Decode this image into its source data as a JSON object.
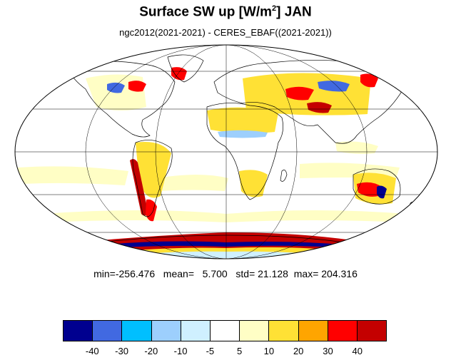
{
  "title": {
    "main": "Surface SW up [W/m",
    "sup": "2",
    "tail": "]  JAN"
  },
  "subtitle": "ngc2012(2021-2021) - CERES_EBAF((2021-2021))",
  "stats": {
    "min_label": "min=",
    "min": "-256.476",
    "mean_label": "mean=",
    "mean": "5.700",
    "std_label": "std=",
    "std": "21.128",
    "max_label": "max=",
    "max": "204.316"
  },
  "colorbar": {
    "colors": [
      "#00008f",
      "#4169e1",
      "#00bfff",
      "#9dcffd",
      "#cff0ff",
      "#ffffff",
      "#fffec5",
      "#ffe135",
      "#ffa500",
      "#ff0000",
      "#c40000"
    ],
    "tick_labels": [
      "-40",
      "-30",
      "-20",
      "-10",
      "-5",
      "5",
      "10",
      "20",
      "30",
      "40"
    ]
  },
  "map": {
    "projection": "mollweide",
    "gridlines": true,
    "graticule_lat": [
      -60,
      -30,
      0,
      30,
      60
    ],
    "graticule_lon": [
      -120,
      -60,
      0,
      60,
      120
    ]
  }
}
